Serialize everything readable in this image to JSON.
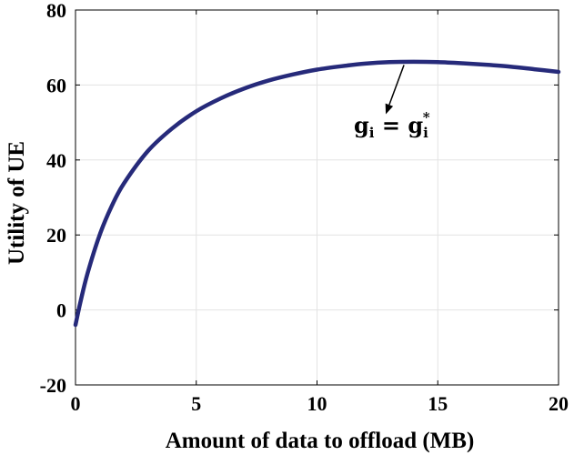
{
  "chart_data": {
    "type": "line",
    "title": "",
    "xlabel": "Amount of data to offload (MB)",
    "ylabel": "Utility of UE",
    "xlim": [
      0,
      20
    ],
    "ylim": [
      -20,
      80
    ],
    "xticks": [
      0,
      5,
      10,
      15,
      20
    ],
    "yticks": [
      -20,
      0,
      20,
      40,
      60,
      80
    ],
    "xtick_labels": [
      "0",
      "5",
      "10",
      "15",
      "20"
    ],
    "ytick_labels": [
      "-20",
      "0",
      "20",
      "40",
      "60",
      "80"
    ],
    "grid": true,
    "legend": "none",
    "series": [
      {
        "color": "#262a7a",
        "x": [
          0,
          0.2,
          0.5,
          1,
          1.5,
          2,
          3,
          4,
          5,
          6,
          7,
          8,
          9,
          10,
          11,
          12,
          13,
          14,
          15,
          16,
          17,
          18,
          19,
          20
        ],
        "y": [
          -4,
          2,
          9.8,
          20,
          27.7,
          33.7,
          42.4,
          48.4,
          53,
          56.4,
          59.1,
          61.2,
          62.8,
          64.1,
          65,
          65.7,
          66.1,
          66.2,
          66.1,
          65.8,
          65.4,
          64.9,
          64.2,
          63.5
        ]
      }
    ],
    "annotation": {
      "text_main": "g",
      "text_sub": "i",
      "text_equals": " = ",
      "text_sup": "*",
      "point": [
        13.6,
        66.3
      ],
      "text_anchor": [
        14.8,
        49
      ]
    }
  }
}
